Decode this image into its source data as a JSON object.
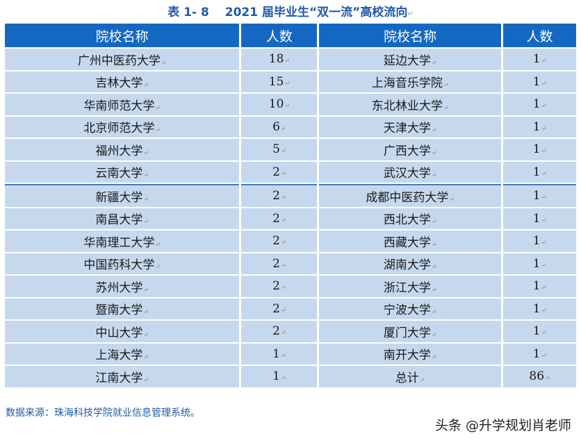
{
  "title": "表 1- 8　 2021 届毕业生“双一流”高校流向",
  "headers": [
    "院校名称",
    "人数",
    "院校名称",
    "人数"
  ],
  "rows": [
    [
      "广州中医药大学",
      "18",
      "延边大学",
      "1"
    ],
    [
      "吉林大学",
      "15",
      "上海音乐学院",
      "1"
    ],
    [
      "华南师范大学",
      "10",
      "东北林业大学",
      "1"
    ],
    [
      "北京师范大学",
      "6",
      "天津大学",
      "1"
    ],
    [
      "福州大学",
      "5",
      "广西大学",
      "1"
    ],
    [
      "云南大学",
      "2",
      "武汉大学",
      "1"
    ],
    [
      "新疆大学",
      "2",
      "成都中医药大学",
      "1"
    ],
    [
      "南昌大学",
      "2",
      "西北大学",
      "1"
    ],
    [
      "华南理工大学",
      "2",
      "西藏大学",
      "1"
    ],
    [
      "中国药科大学",
      "2",
      "湖南大学",
      "1"
    ],
    [
      "苏州大学",
      "2",
      "浙江大学",
      "1"
    ],
    [
      "暨南大学",
      "2",
      "宁波大学",
      "1"
    ],
    [
      "中山大学",
      "2",
      "厦门大学",
      "1"
    ],
    [
      "上海大学",
      "1",
      "南开大学",
      "1"
    ],
    [
      "江南大学",
      "1",
      "总计",
      "86"
    ]
  ],
  "source_note": "数据来源：珠海科技学院就业信息管理系统。",
  "watermark": "头条 @升学规划肖老师"
}
